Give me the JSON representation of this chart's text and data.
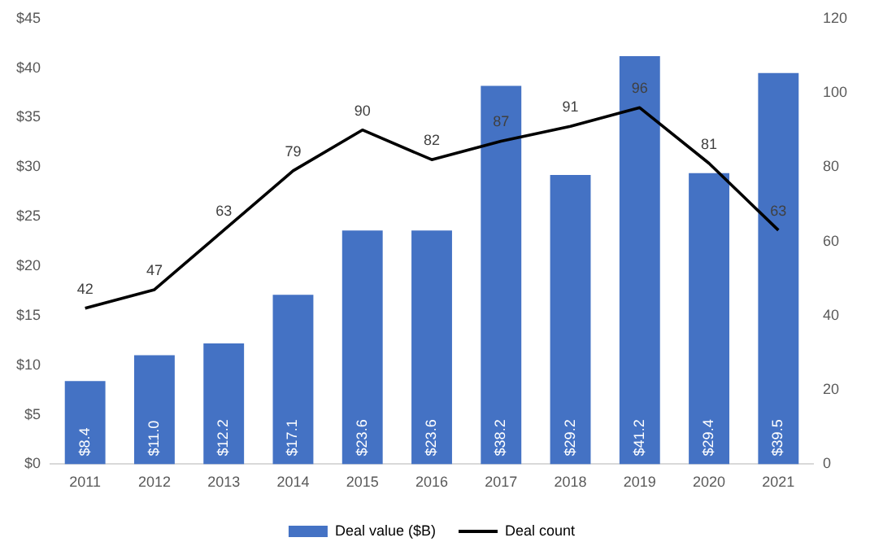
{
  "chart_data": {
    "type": "bar",
    "categories": [
      "2011",
      "2012",
      "2013",
      "2014",
      "2015",
      "2016",
      "2017",
      "2018",
      "2019",
      "2020",
      "2021"
    ],
    "series": [
      {
        "name": "Deal value ($B)",
        "color": "#4472c4",
        "values": [
          8.4,
          11.0,
          12.2,
          17.1,
          23.6,
          23.6,
          38.2,
          29.2,
          41.2,
          29.4,
          39.5
        ],
        "value_labels": [
          "$8.4",
          "$11.0",
          "$12.2",
          "$17.1",
          "$23.6",
          "$23.6",
          "$38.2",
          "$29.2",
          "$41.2",
          "$29.4",
          "$39.5"
        ]
      },
      {
        "name": "Deal count",
        "type": "line",
        "axis": "y2",
        "color": "#000000",
        "values": [
          42,
          47,
          63,
          79,
          90,
          82,
          87,
          91,
          96,
          81,
          63
        ],
        "value_labels": [
          "42",
          "47",
          "63",
          "79",
          "90",
          "82",
          "87",
          "91",
          "96",
          "81",
          "63"
        ]
      }
    ],
    "ylim": [
      0,
      45
    ],
    "yticks": [
      {
        "value": 0,
        "label": "$0"
      },
      {
        "value": 5,
        "label": "$5"
      },
      {
        "value": 10,
        "label": "$10"
      },
      {
        "value": 15,
        "label": "$15"
      },
      {
        "value": 20,
        "label": "$20"
      },
      {
        "value": 25,
        "label": "$25"
      },
      {
        "value": 30,
        "label": "$30"
      },
      {
        "value": 35,
        "label": "$35"
      },
      {
        "value": 40,
        "label": "$40"
      },
      {
        "value": 45,
        "label": "$45"
      }
    ],
    "y2lim": [
      0,
      120
    ],
    "y2ticks": [
      0,
      20,
      40,
      60,
      80,
      100,
      120
    ],
    "legend": "bottom",
    "marker": "none",
    "line_style": "solid"
  }
}
